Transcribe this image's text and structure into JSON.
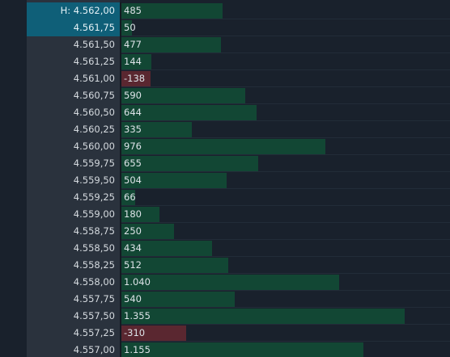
{
  "ladder": {
    "colors": {
      "background": "#19212c",
      "price_column": "#2a323d",
      "price_highlight": "#0f5f78",
      "positive_bar": "#124734",
      "negative_bar": "#5a2730"
    },
    "max_volume": 1570,
    "rows": [
      {
        "price": "H: 4.562,00",
        "volume": "485",
        "value": 485,
        "highlight": true
      },
      {
        "price": "4.561,75",
        "volume": "50",
        "value": 50,
        "highlight": true
      },
      {
        "price": "4.561,50",
        "volume": "477",
        "value": 477,
        "highlight": false
      },
      {
        "price": "4.561,25",
        "volume": "144",
        "value": 144,
        "highlight": false
      },
      {
        "price": "4.561,00",
        "volume": "-138",
        "value": -138,
        "highlight": false
      },
      {
        "price": "4.560,75",
        "volume": "590",
        "value": 590,
        "highlight": false
      },
      {
        "price": "4.560,50",
        "volume": "644",
        "value": 644,
        "highlight": false
      },
      {
        "price": "4.560,25",
        "volume": "335",
        "value": 335,
        "highlight": false
      },
      {
        "price": "4.560,00",
        "volume": "976",
        "value": 976,
        "highlight": false
      },
      {
        "price": "4.559,75",
        "volume": "655",
        "value": 655,
        "highlight": false
      },
      {
        "price": "4.559,50",
        "volume": "504",
        "value": 504,
        "highlight": false
      },
      {
        "price": "4.559,25",
        "volume": "66",
        "value": 66,
        "highlight": false
      },
      {
        "price": "4.559,00",
        "volume": "180",
        "value": 180,
        "highlight": false
      },
      {
        "price": "4.558,75",
        "volume": "250",
        "value": 250,
        "highlight": false
      },
      {
        "price": "4.558,50",
        "volume": "434",
        "value": 434,
        "highlight": false
      },
      {
        "price": "4.558,25",
        "volume": "512",
        "value": 512,
        "highlight": false
      },
      {
        "price": "4.558,00",
        "volume": "1.040",
        "value": 1040,
        "highlight": false
      },
      {
        "price": "4.557,75",
        "volume": "540",
        "value": 540,
        "highlight": false
      },
      {
        "price": "4.557,50",
        "volume": "1.355",
        "value": 1355,
        "highlight": false
      },
      {
        "price": "4.557,25",
        "volume": "-310",
        "value": -310,
        "highlight": false
      },
      {
        "price": "4.557,00",
        "volume": "1.155",
        "value": 1155,
        "highlight": false
      }
    ]
  }
}
